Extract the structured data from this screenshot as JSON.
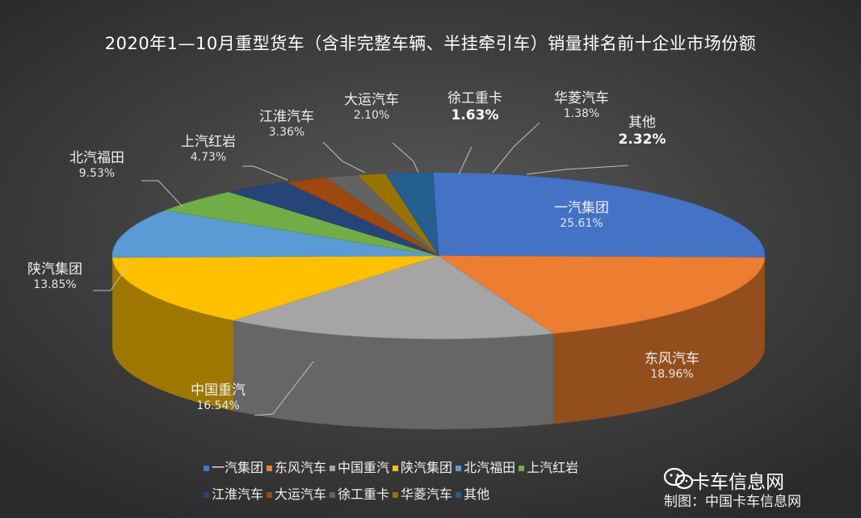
{
  "chart_data": {
    "type": "pie",
    "title": "2020年1—10月重型货车（含非完整车辆、半挂牵引车）销量排名前十企业市场份额",
    "slices": [
      {
        "name": "一汽集团",
        "value": 25.61,
        "label": "25.61%",
        "color": "#4472c4",
        "bold": false
      },
      {
        "name": "东风汽车",
        "value": 18.96,
        "label": "18.96%",
        "color": "#ed7d31",
        "bold": false
      },
      {
        "name": "中国重汽",
        "value": 16.54,
        "label": "16.54%",
        "color": "#a5a5a5",
        "bold": false
      },
      {
        "name": "陕汽集团",
        "value": 13.85,
        "label": "13.85%",
        "color": "#ffc000",
        "bold": false
      },
      {
        "name": "北汽福田",
        "value": 9.53,
        "label": "9.53%",
        "color": "#5b9bd5",
        "bold": false
      },
      {
        "name": "上汽红岩",
        "value": 4.73,
        "label": "4.73%",
        "color": "#70ad47",
        "bold": false
      },
      {
        "name": "江淮汽车",
        "value": 3.36,
        "label": "3.36%",
        "color": "#264478",
        "bold": false
      },
      {
        "name": "大运汽车",
        "value": 2.1,
        "label": "2.10%",
        "color": "#9e480e",
        "bold": false
      },
      {
        "name": "徐工重卡",
        "value": 1.63,
        "label": "1.63%",
        "color": "#636363",
        "bold": true
      },
      {
        "name": "华菱汽车",
        "value": 1.38,
        "label": "1.38%",
        "color": "#997300",
        "bold": false
      },
      {
        "name": "其他",
        "value": 2.32,
        "label": "2.32%",
        "color": "#255e91",
        "bold": true
      }
    ],
    "legend_position": "bottom"
  },
  "watermark": "卡车信息网",
  "credit": "制图：中国卡车信息网"
}
